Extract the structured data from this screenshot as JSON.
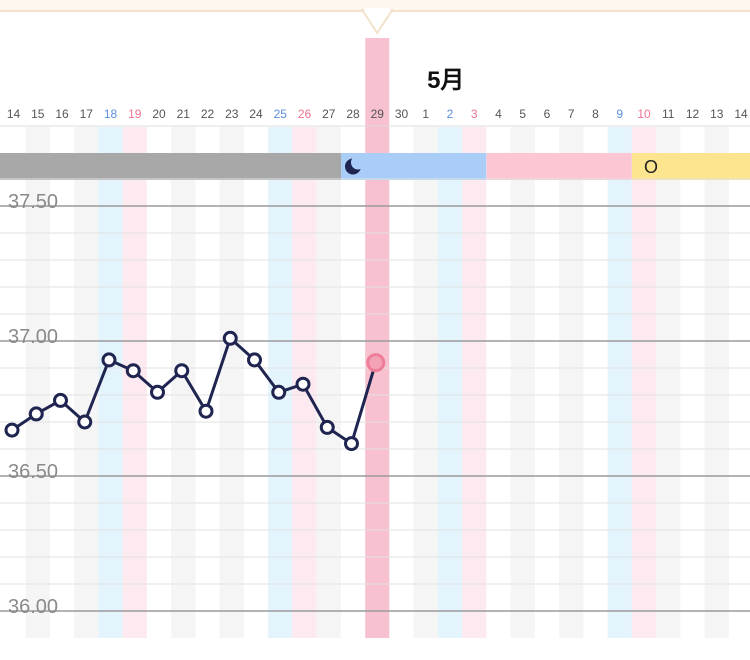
{
  "chart_data": {
    "type": "line",
    "month_label": "5月",
    "x_labels": [
      "14",
      "15",
      "16",
      "17",
      "18",
      "19",
      "20",
      "21",
      "22",
      "23",
      "24",
      "25",
      "26",
      "27",
      "28",
      "29",
      "30",
      "1",
      "2",
      "3",
      "4",
      "5",
      "6",
      "7",
      "8",
      "9",
      "10",
      "11",
      "12",
      "13",
      "14"
    ],
    "saturday_labels": [
      "18",
      "25",
      "2",
      "9"
    ],
    "sunday_labels": [
      "19",
      "26",
      "3",
      "10"
    ],
    "selected_label": "29",
    "y_ticks": [
      "37.50",
      "37.00",
      "36.50",
      "36.00"
    ],
    "ylim": [
      35.96,
      37.71
    ],
    "grid": true,
    "series": [
      {
        "values": [
          36.67,
          36.73,
          36.78,
          36.7,
          36.93,
          36.89,
          36.81,
          36.89,
          36.74,
          37.01,
          36.93,
          36.81,
          36.84,
          36.68,
          36.62,
          36.92
        ]
      }
    ],
    "phase_bar": [
      {
        "from": "14",
        "to": "28",
        "color": "#a8a8a8",
        "icon": "moon-icon",
        "text": ""
      },
      {
        "from": "28",
        "to": "3",
        "color": "#a9cdf7",
        "icon": "",
        "text": ""
      },
      {
        "from": "4",
        "to": "9",
        "color": "#fcc6d2",
        "icon": "",
        "text": ""
      },
      {
        "from": "10",
        "to": "14",
        "color": "#fde48e",
        "icon": "",
        "text": "O"
      }
    ],
    "colors": {
      "line": "#1f2450",
      "selected_point": "#ee7d98",
      "selected_column": "#f7c1cf",
      "saturday": "#5b8fe0",
      "sunday": "#f0738f",
      "weekday": "#555555"
    }
  }
}
